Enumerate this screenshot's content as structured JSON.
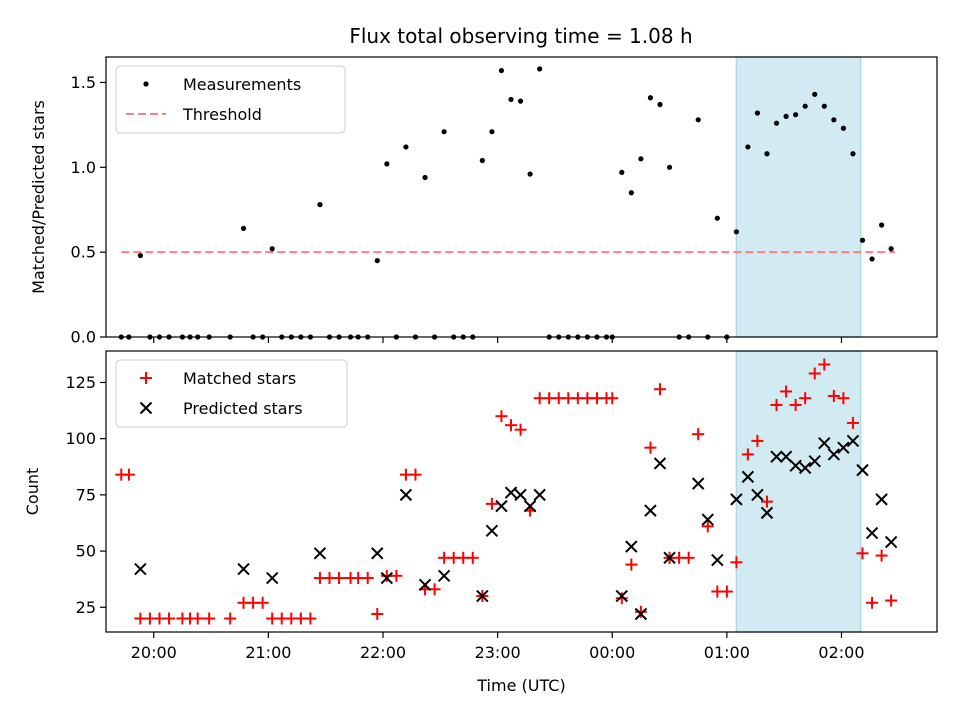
{
  "title": "Flux total observing time = 1.08 h",
  "colors": {
    "measurements": "#000000",
    "threshold": "#ff7f7f",
    "matched": "#ff0000",
    "predicted": "#000000",
    "shade": "#add8e6"
  },
  "chart_data": [
    {
      "type": "scatter",
      "ylabel": "Matched/Predicted stars",
      "ylim": [
        0,
        1.65
      ],
      "yticks": [
        0.0,
        0.5,
        1.0,
        1.5
      ],
      "ytick_labels": [
        "0.0",
        "0.5",
        "1.0",
        "1.5"
      ],
      "xlim": [
        "19:35",
        "02:50"
      ],
      "legend": {
        "placement": "top-left",
        "entries": [
          "Measurements",
          "Threshold"
        ]
      },
      "shaded_region": {
        "start": "01:05",
        "end": "02:10"
      },
      "threshold": {
        "name": "Threshold",
        "value": 0.5,
        "x_start": "19:43",
        "x_end": "02:28"
      },
      "series": [
        {
          "name": "Measurements",
          "points": [
            [
              "19:43",
              0
            ],
            [
              "19:47",
              0
            ],
            [
              "19:53",
              0.48
            ],
            [
              "19:58",
              0
            ],
            [
              "20:03",
              0
            ],
            [
              "20:08",
              0
            ],
            [
              "20:15",
              0
            ],
            [
              "20:19",
              0
            ],
            [
              "20:23",
              0
            ],
            [
              "20:29",
              0
            ],
            [
              "20:40",
              0
            ],
            [
              "20:47",
              0.64
            ],
            [
              "20:52",
              0
            ],
            [
              "20:57",
              0
            ],
            [
              "21:02",
              0.52
            ],
            [
              "21:07",
              0
            ],
            [
              "21:12",
              0
            ],
            [
              "21:17",
              0
            ],
            [
              "21:22",
              0
            ],
            [
              "21:27",
              0.78
            ],
            [
              "21:32",
              0
            ],
            [
              "21:37",
              0
            ],
            [
              "21:43",
              0
            ],
            [
              "21:47",
              0
            ],
            [
              "21:52",
              0
            ],
            [
              "21:57",
              0.45
            ],
            [
              "22:02",
              1.02
            ],
            [
              "22:07",
              0
            ],
            [
              "22:12",
              1.12
            ],
            [
              "22:17",
              0
            ],
            [
              "22:22",
              0.94
            ],
            [
              "22:27",
              0
            ],
            [
              "22:32",
              1.21
            ],
            [
              "22:37",
              0
            ],
            [
              "22:42",
              0
            ],
            [
              "22:47",
              0
            ],
            [
              "22:52",
              1.04
            ],
            [
              "22:57",
              1.21
            ],
            [
              "23:02",
              1.57
            ],
            [
              "23:07",
              1.4
            ],
            [
              "23:12",
              1.39
            ],
            [
              "23:17",
              0.96
            ],
            [
              "23:22",
              1.58
            ],
            [
              "23:27",
              0
            ],
            [
              "23:32",
              0
            ],
            [
              "23:37",
              0
            ],
            [
              "23:42",
              0
            ],
            [
              "23:47",
              0
            ],
            [
              "23:52",
              0
            ],
            [
              "23:57",
              0
            ],
            [
              "00:00",
              0
            ],
            [
              "00:05",
              0.97
            ],
            [
              "00:10",
              0.85
            ],
            [
              "00:15",
              1.05
            ],
            [
              "00:20",
              1.41
            ],
            [
              "00:25",
              1.37
            ],
            [
              "00:30",
              1.0
            ],
            [
              "00:35",
              0
            ],
            [
              "00:40",
              0
            ],
            [
              "00:45",
              1.28
            ],
            [
              "00:50",
              0
            ],
            [
              "00:55",
              0.7
            ],
            [
              "01:00",
              0
            ],
            [
              "01:05",
              0.62
            ],
            [
              "01:11",
              1.12
            ],
            [
              "01:16",
              1.32
            ],
            [
              "01:21",
              1.08
            ],
            [
              "01:26",
              1.26
            ],
            [
              "01:31",
              1.3
            ],
            [
              "01:36",
              1.31
            ],
            [
              "01:41",
              1.36
            ],
            [
              "01:46",
              1.43
            ],
            [
              "01:51",
              1.36
            ],
            [
              "01:56",
              1.28
            ],
            [
              "02:01",
              1.23
            ],
            [
              "02:06",
              1.08
            ],
            [
              "02:11",
              0.57
            ],
            [
              "02:16",
              0.46
            ],
            [
              "02:21",
              0.66
            ],
            [
              "02:26",
              0.52
            ]
          ]
        }
      ]
    },
    {
      "type": "scatter",
      "ylabel": "Count",
      "xlabel": "Time (UTC)",
      "ylim": [
        14,
        139
      ],
      "yticks": [
        25,
        50,
        75,
        100,
        125
      ],
      "ytick_labels": [
        "25",
        "50",
        "75",
        "100",
        "125"
      ],
      "xlim": [
        "19:35",
        "02:50"
      ],
      "xticks": [
        "20:00",
        "21:00",
        "22:00",
        "23:00",
        "00:00",
        "01:00",
        "02:00"
      ],
      "legend": {
        "placement": "top-left",
        "entries": [
          "Matched stars",
          "Predicted stars"
        ]
      },
      "shaded_region": {
        "start": "01:05",
        "end": "02:10"
      },
      "series": [
        {
          "name": "Matched stars",
          "marker": "+",
          "points": [
            [
              "19:43",
              84
            ],
            [
              "19:47",
              84
            ],
            [
              "19:53",
              20
            ],
            [
              "19:58",
              20
            ],
            [
              "20:03",
              20
            ],
            [
              "20:08",
              20
            ],
            [
              "20:15",
              20
            ],
            [
              "20:19",
              20
            ],
            [
              "20:23",
              20
            ],
            [
              "20:29",
              20
            ],
            [
              "20:40",
              20
            ],
            [
              "20:47",
              27
            ],
            [
              "20:52",
              27
            ],
            [
              "20:57",
              27
            ],
            [
              "21:02",
              20
            ],
            [
              "21:07",
              20
            ],
            [
              "21:12",
              20
            ],
            [
              "21:17",
              20
            ],
            [
              "21:22",
              20
            ],
            [
              "21:27",
              38
            ],
            [
              "21:32",
              38
            ],
            [
              "21:37",
              38
            ],
            [
              "21:43",
              38
            ],
            [
              "21:47",
              38
            ],
            [
              "21:52",
              38
            ],
            [
              "21:57",
              22
            ],
            [
              "22:02",
              39
            ],
            [
              "22:07",
              39
            ],
            [
              "22:12",
              84
            ],
            [
              "22:17",
              84
            ],
            [
              "22:22",
              33
            ],
            [
              "22:27",
              33
            ],
            [
              "22:32",
              47
            ],
            [
              "22:37",
              47
            ],
            [
              "22:42",
              47
            ],
            [
              "22:47",
              47
            ],
            [
              "22:52",
              30
            ],
            [
              "22:57",
              71
            ],
            [
              "23:02",
              110
            ],
            [
              "23:07",
              106
            ],
            [
              "23:12",
              104
            ],
            [
              "23:17",
              68
            ],
            [
              "23:22",
              118
            ],
            [
              "23:27",
              118
            ],
            [
              "23:32",
              118
            ],
            [
              "23:37",
              118
            ],
            [
              "23:42",
              118
            ],
            [
              "23:47",
              118
            ],
            [
              "23:52",
              118
            ],
            [
              "23:57",
              118
            ],
            [
              "00:00",
              118
            ],
            [
              "00:05",
              29
            ],
            [
              "00:10",
              44
            ],
            [
              "00:15",
              23
            ],
            [
              "00:20",
              96
            ],
            [
              "00:25",
              122
            ],
            [
              "00:30",
              47
            ],
            [
              "00:35",
              47
            ],
            [
              "00:40",
              47
            ],
            [
              "00:45",
              102
            ],
            [
              "00:50",
              61
            ],
            [
              "00:55",
              32
            ],
            [
              "01:00",
              32
            ],
            [
              "01:05",
              45
            ],
            [
              "01:11",
              93
            ],
            [
              "01:16",
              99
            ],
            [
              "01:21",
              72
            ],
            [
              "01:26",
              115
            ],
            [
              "01:31",
              121
            ],
            [
              "01:36",
              115
            ],
            [
              "01:41",
              118
            ],
            [
              "01:46",
              129
            ],
            [
              "01:51",
              133
            ],
            [
              "01:56",
              119
            ],
            [
              "02:01",
              118
            ],
            [
              "02:06",
              107
            ],
            [
              "02:11",
              49
            ],
            [
              "02:16",
              27
            ],
            [
              "02:21",
              48
            ],
            [
              "02:26",
              28
            ]
          ]
        },
        {
          "name": "Predicted stars",
          "marker": "x",
          "points": [
            [
              "19:53",
              42
            ],
            [
              "20:47",
              42
            ],
            [
              "21:02",
              38
            ],
            [
              "21:27",
              49
            ],
            [
              "21:57",
              49
            ],
            [
              "22:02",
              38
            ],
            [
              "22:12",
              75
            ],
            [
              "22:22",
              35
            ],
            [
              "22:32",
              39
            ],
            [
              "22:52",
              30
            ],
            [
              "22:57",
              59
            ],
            [
              "23:02",
              70
            ],
            [
              "23:07",
              76
            ],
            [
              "23:12",
              75
            ],
            [
              "23:17",
              70
            ],
            [
              "23:22",
              75
            ],
            [
              "00:05",
              30
            ],
            [
              "00:10",
              52
            ],
            [
              "00:15",
              22
            ],
            [
              "00:20",
              68
            ],
            [
              "00:25",
              89
            ],
            [
              "00:30",
              47
            ],
            [
              "00:45",
              80
            ],
            [
              "00:50",
              64
            ],
            [
              "00:55",
              46
            ],
            [
              "01:05",
              73
            ],
            [
              "01:11",
              83
            ],
            [
              "01:16",
              75
            ],
            [
              "01:21",
              67
            ],
            [
              "01:26",
              92
            ],
            [
              "01:31",
              92
            ],
            [
              "01:36",
              88
            ],
            [
              "01:41",
              87
            ],
            [
              "01:46",
              90
            ],
            [
              "01:51",
              98
            ],
            [
              "01:56",
              93
            ],
            [
              "02:01",
              96
            ],
            [
              "02:06",
              99
            ],
            [
              "02:11",
              86
            ],
            [
              "02:16",
              58
            ],
            [
              "02:21",
              73
            ],
            [
              "02:26",
              54
            ]
          ]
        }
      ]
    }
  ]
}
